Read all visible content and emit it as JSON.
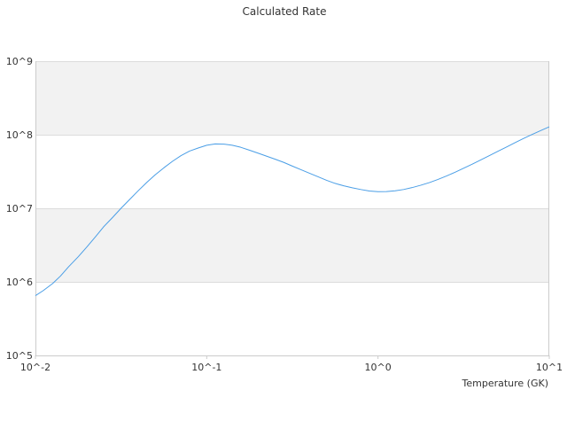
{
  "chart_data": {
    "type": "line",
    "title": "Calculated Rate",
    "xlabel": "Temperature (GK)",
    "ylabel": "",
    "x_scale": "log",
    "y_scale": "log",
    "xlim": [
      0.01,
      10
    ],
    "ylim": [
      100000,
      1000000000
    ],
    "x_ticks": [
      {
        "value": 0.01,
        "label": "10^-2"
      },
      {
        "value": 0.1,
        "label": "10^-1"
      },
      {
        "value": 1,
        "label": "10^0"
      },
      {
        "value": 10,
        "label": "10^1"
      }
    ],
    "y_ticks": [
      {
        "value": 100000,
        "label": "10^5"
      },
      {
        "value": 1000000,
        "label": "10^6"
      },
      {
        "value": 10000000,
        "label": "10^7"
      },
      {
        "value": 100000000,
        "label": "10^8"
      },
      {
        "value": 1000000000,
        "label": "10^9"
      }
    ],
    "grid": true,
    "alternating_bands": true,
    "legend": false,
    "colors": {
      "line": "#4a9ee6",
      "band": "#f2f2f2",
      "grid": "#dcdcdc",
      "axis": "#cccccc",
      "text": "#333333"
    },
    "series": [
      {
        "x": [
          0.01,
          0.0111,
          0.0126,
          0.014,
          0.0156,
          0.0178,
          0.02,
          0.0224,
          0.025,
          0.0282,
          0.0316,
          0.0355,
          0.04,
          0.0447,
          0.05,
          0.0562,
          0.0631,
          0.0708,
          0.0794,
          0.0891,
          0.1,
          0.112,
          0.126,
          0.141,
          0.158,
          0.178,
          0.2,
          0.224,
          0.251,
          0.282,
          0.316,
          0.355,
          0.398,
          0.447,
          0.501,
          0.562,
          0.631,
          0.708,
          0.794,
          0.891,
          1.0,
          1.12,
          1.26,
          1.41,
          1.58,
          1.78,
          2.0,
          2.24,
          2.51,
          2.82,
          3.16,
          3.55,
          3.98,
          4.47,
          5.01,
          5.62,
          6.31,
          7.08,
          7.94,
          8.91,
          10.0
        ],
        "y": [
          650000,
          760000,
          950000,
          1200000,
          1600000,
          2200000,
          3000000,
          4100000,
          5600000,
          7500000,
          10000000,
          13200000,
          17500000,
          22500000,
          28500000,
          35500000,
          43500000,
          52000000,
          60000000,
          66000000,
          72000000,
          75000000,
          74500000,
          72000000,
          67500000,
          61500000,
          56000000,
          51000000,
          46500000,
          42000000,
          37500000,
          33500000,
          30000000,
          26800000,
          24000000,
          21800000,
          20200000,
          19000000,
          18000000,
          17200000,
          16800000,
          16900000,
          17300000,
          18000000,
          19100000,
          20600000,
          22400000,
          24700000,
          27500000,
          30900000,
          35000000,
          39800000,
          45500000,
          52000000,
          59500000,
          68000000,
          78000000,
          89000000,
          101000000,
          114000000,
          128000000
        ]
      }
    ]
  }
}
